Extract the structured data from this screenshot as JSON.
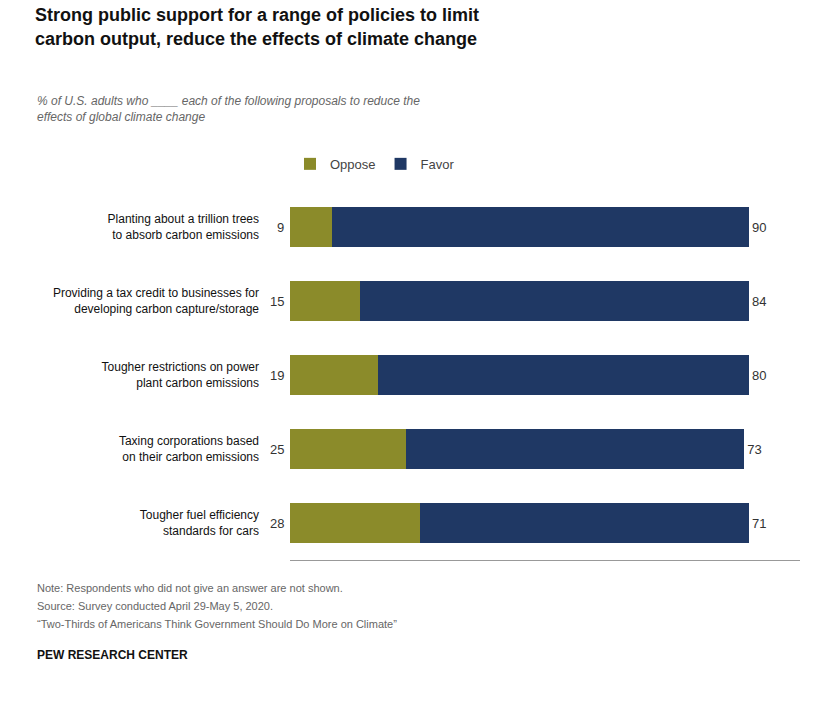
{
  "chart_data": {
    "type": "bar",
    "orientation": "horizontal",
    "stacked": true,
    "title": "Strong public support for a range of policies to limit\ncarbon output, reduce the effects of climate change",
    "subtitle": "% of U.S. adults who ____ each of the following proposals to reduce the\neffects of global climate change",
    "categories": [
      "Planting about a trillion trees\nto absorb carbon emissions",
      "Providing a tax credit to businesses for\ndeveloping carbon capture/storage",
      "Tougher restrictions on power\nplant carbon emissions",
      "Taxing corporations based\non their carbon emissions",
      "Tougher fuel efficiency\nstandards for cars"
    ],
    "series": [
      {
        "name": "Oppose",
        "color": "#8b8b2a",
        "values": [
          9,
          15,
          19,
          25,
          28
        ]
      },
      {
        "name": "Favor",
        "color": "#1f3864",
        "values": [
          90,
          84,
          80,
          73,
          71
        ]
      }
    ],
    "xlim": [
      0,
      110
    ],
    "tick_labels": "y",
    "grid": false,
    "legend": "upper left",
    "data_labels": true,
    "annotations": [
      "Note: Respondents who did not give an answer are not shown.",
      "Source: Survey conducted April 29-May 5, 2020.",
      "“Two-Thirds of Americans Think Government Should Do More on Climate”",
      "PEW RESEARCH CENTER"
    ]
  }
}
